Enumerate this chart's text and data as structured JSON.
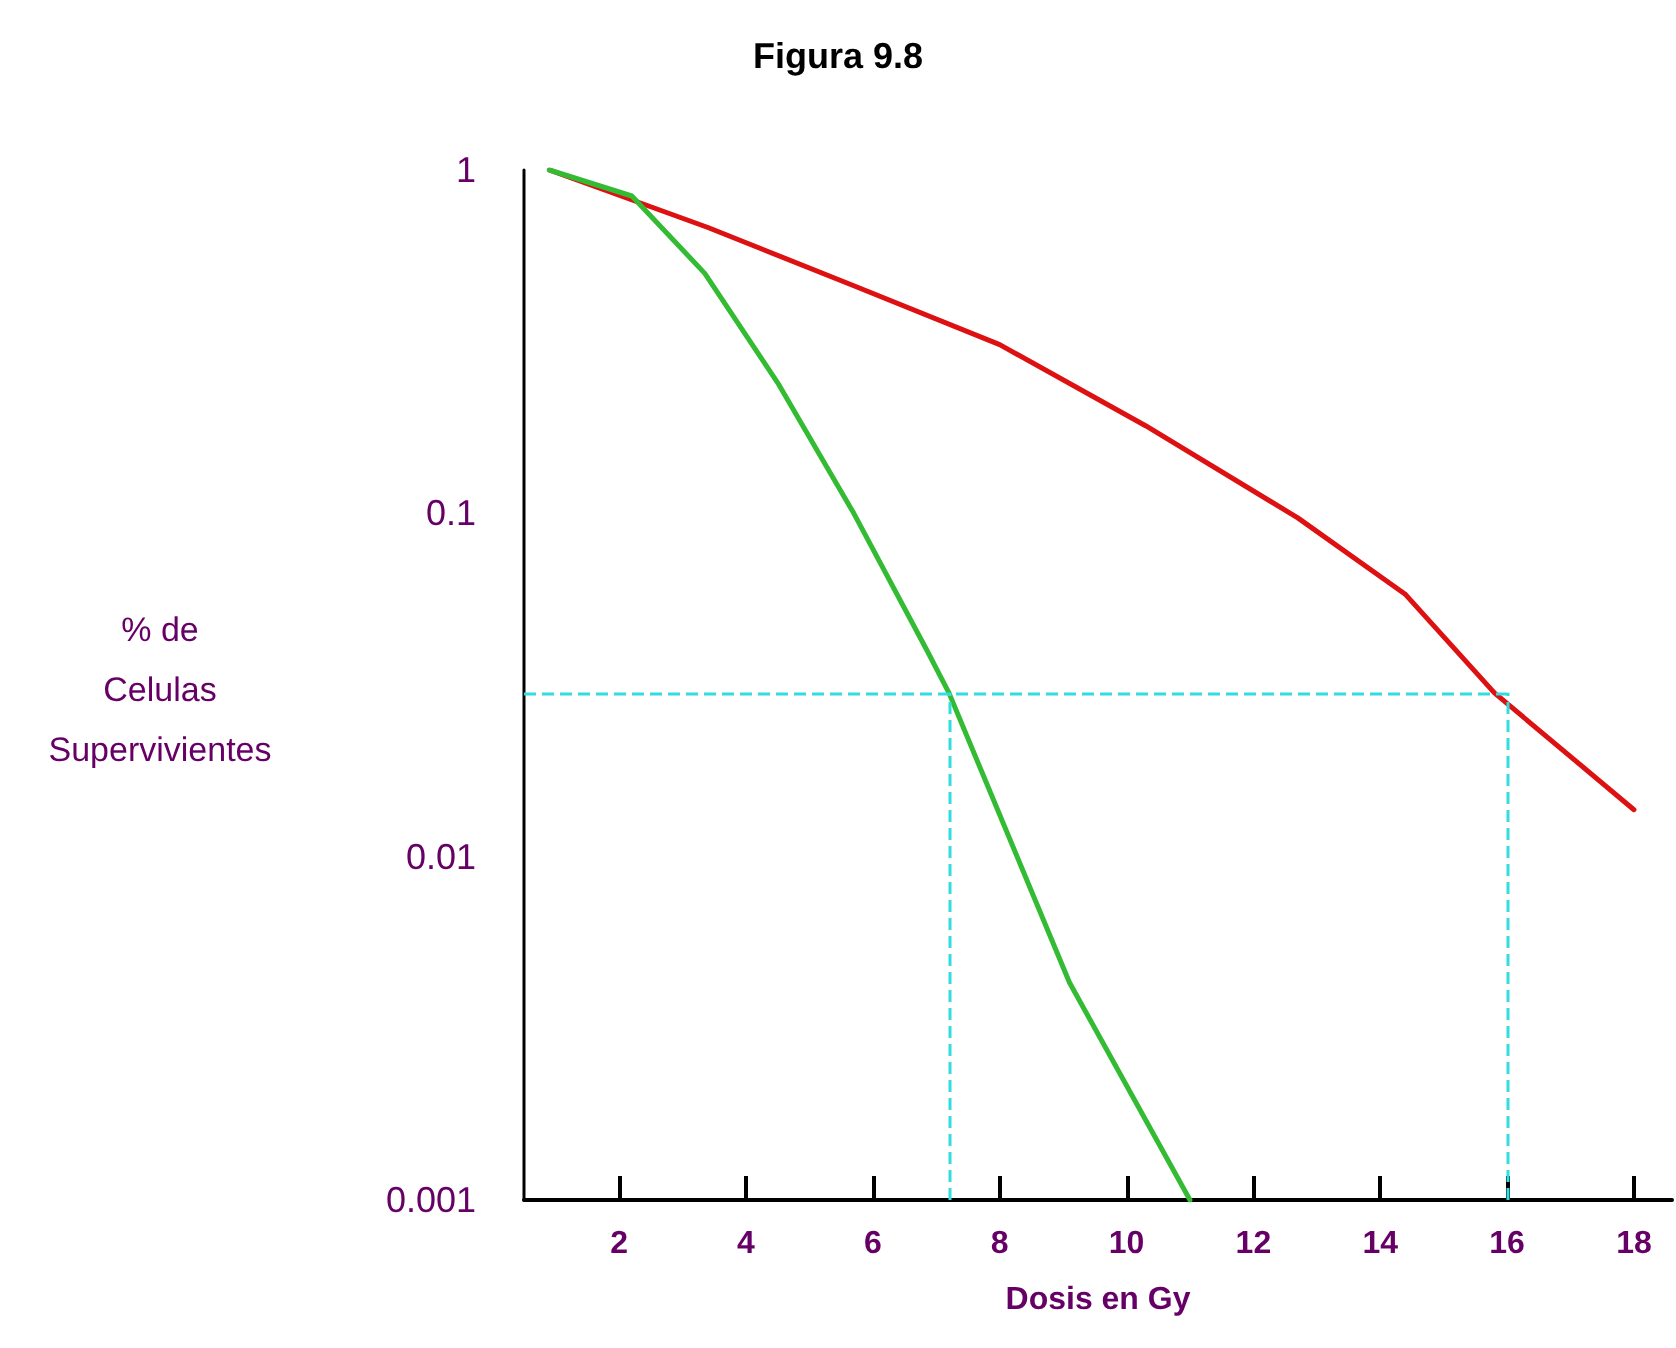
{
  "chart_data": {
    "type": "line",
    "title": "Figura 9.8",
    "xlabel": "Dosis en Gy",
    "ylabel": "% de\nCelulas\nSupervivientes",
    "log": "y",
    "xlim": [
      0.5,
      18.6
    ],
    "ylim": [
      0.001,
      1
    ],
    "xticks": [
      2,
      4,
      6,
      8,
      10,
      12,
      14,
      16,
      18
    ],
    "yticks": [
      0.001,
      0.01,
      0.1,
      1
    ],
    "grid": false,
    "marker": "none",
    "line_style": "solid",
    "series": [
      {
        "color": "#dd1111",
        "x": [
          0.9,
          3.4,
          5.7,
          8.0,
          10.3,
          12.7,
          14.4,
          15.8,
          18.0
        ],
        "values": [
          1,
          0.68,
          0.46,
          0.31,
          0.18,
          0.097,
          0.058,
          0.03,
          0.0137
        ]
      },
      {
        "color": "#33bb33",
        "x": [
          0.9,
          2.2,
          3.35,
          4.5,
          5.7,
          6.85,
          7.2,
          9.1,
          11.0
        ],
        "values": [
          1,
          0.84,
          0.5,
          0.24,
          0.1,
          0.04,
          0.03,
          0.0043,
          0.001
        ]
      }
    ],
    "ref_lines": [
      {
        "axis": "y",
        "value": 0.03,
        "color": "#33dddd",
        "line_style": "dashed"
      },
      {
        "axis": "x",
        "value": 7.2,
        "color": "#33dddd",
        "line_style": "dashed"
      },
      {
        "axis": "x",
        "value": 16,
        "color": "#33dddd",
        "line_style": "dashed"
      }
    ]
  }
}
